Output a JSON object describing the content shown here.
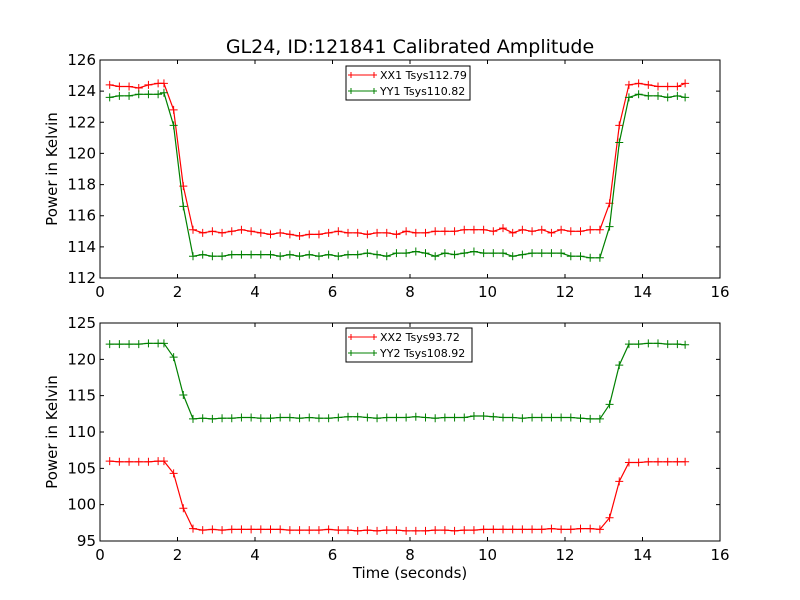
{
  "title": "GL24, ID:121841 Calibrated Amplitude",
  "chart_data": [
    {
      "type": "line",
      "ylabel": "Power in Kelvin",
      "xlabel": "",
      "xlim": [
        0,
        16
      ],
      "ylim": [
        112,
        126
      ],
      "xticks": [
        "0",
        "2",
        "4",
        "6",
        "8",
        "10",
        "12",
        "14",
        "16"
      ],
      "yticks": [
        "112",
        "114",
        "116",
        "118",
        "120",
        "122",
        "124",
        "126"
      ],
      "grid": false,
      "legend_position": "top-center",
      "x": [
        0.25,
        0.5,
        0.75,
        1.0,
        1.25,
        1.5,
        1.65,
        1.9,
        2.15,
        2.4,
        2.65,
        2.9,
        3.15,
        3.4,
        3.65,
        3.9,
        4.15,
        4.4,
        4.65,
        4.9,
        5.15,
        5.4,
        5.65,
        5.9,
        6.15,
        6.4,
        6.65,
        6.9,
        7.15,
        7.4,
        7.65,
        7.9,
        8.15,
        8.4,
        8.65,
        8.9,
        9.15,
        9.4,
        9.65,
        9.9,
        10.15,
        10.4,
        10.65,
        10.9,
        11.15,
        11.4,
        11.65,
        11.9,
        12.15,
        12.4,
        12.65,
        12.9,
        13.15,
        13.4,
        13.65,
        13.9,
        14.15,
        14.4,
        14.65,
        14.9,
        15.1
      ],
      "series": [
        {
          "name": "XX1 Tsys112.79",
          "color": "#ff0000",
          "values": [
            124.4,
            124.3,
            124.3,
            124.2,
            124.4,
            124.5,
            124.5,
            122.8,
            117.9,
            115.1,
            114.9,
            115.0,
            114.9,
            115.0,
            115.1,
            115.0,
            114.9,
            114.8,
            114.9,
            114.8,
            114.7,
            114.8,
            114.8,
            114.9,
            115.0,
            114.9,
            114.9,
            114.8,
            114.9,
            114.9,
            114.8,
            115.0,
            114.9,
            114.9,
            115.0,
            115.0,
            115.0,
            115.1,
            115.1,
            115.1,
            115.0,
            115.2,
            114.9,
            115.1,
            115.0,
            115.1,
            114.9,
            115.1,
            115.0,
            115.0,
            115.1,
            115.1,
            116.8,
            121.8,
            124.4,
            124.5,
            124.4,
            124.3,
            124.3,
            124.3,
            124.5
          ]
        },
        {
          "name": "YY1 Tsys110.82",
          "color": "#008000",
          "values": [
            123.6,
            123.7,
            123.7,
            123.8,
            123.8,
            123.8,
            123.9,
            121.8,
            116.6,
            113.4,
            113.5,
            113.4,
            113.4,
            113.5,
            113.5,
            113.5,
            113.5,
            113.5,
            113.4,
            113.5,
            113.4,
            113.5,
            113.4,
            113.5,
            113.4,
            113.5,
            113.5,
            113.6,
            113.5,
            113.4,
            113.6,
            113.6,
            113.7,
            113.6,
            113.4,
            113.6,
            113.5,
            113.6,
            113.7,
            113.6,
            113.6,
            113.6,
            113.4,
            113.5,
            113.6,
            113.6,
            113.6,
            113.6,
            113.4,
            113.4,
            113.3,
            113.3,
            115.3,
            120.7,
            123.6,
            123.8,
            123.7,
            123.7,
            123.6,
            123.7,
            123.6
          ]
        }
      ]
    },
    {
      "type": "line",
      "ylabel": "Power in Kelvin",
      "xlabel": "Time (seconds)",
      "xlim": [
        0,
        16
      ],
      "ylim": [
        95,
        125
      ],
      "xticks": [
        "0",
        "2",
        "4",
        "6",
        "8",
        "10",
        "12",
        "14",
        "16"
      ],
      "yticks": [
        "95",
        "100",
        "105",
        "110",
        "115",
        "120",
        "125"
      ],
      "grid": false,
      "legend_position": "top-center",
      "x": [
        0.25,
        0.5,
        0.75,
        1.0,
        1.25,
        1.5,
        1.65,
        1.9,
        2.15,
        2.4,
        2.65,
        2.9,
        3.15,
        3.4,
        3.65,
        3.9,
        4.15,
        4.4,
        4.65,
        4.9,
        5.15,
        5.4,
        5.65,
        5.9,
        6.15,
        6.4,
        6.65,
        6.9,
        7.15,
        7.4,
        7.65,
        7.9,
        8.15,
        8.4,
        8.65,
        8.9,
        9.15,
        9.4,
        9.65,
        9.9,
        10.15,
        10.4,
        10.65,
        10.9,
        11.15,
        11.4,
        11.65,
        11.9,
        12.15,
        12.4,
        12.65,
        12.9,
        13.15,
        13.4,
        13.65,
        13.9,
        14.15,
        14.4,
        14.65,
        14.9,
        15.1
      ],
      "series": [
        {
          "name": "XX2 Tsys93.72",
          "color": "#ff0000",
          "values": [
            106.0,
            105.9,
            105.9,
            105.9,
            105.9,
            106.0,
            106.0,
            104.3,
            99.5,
            96.7,
            96.5,
            96.6,
            96.5,
            96.6,
            96.6,
            96.6,
            96.6,
            96.6,
            96.6,
            96.5,
            96.5,
            96.5,
            96.5,
            96.6,
            96.5,
            96.5,
            96.4,
            96.5,
            96.4,
            96.5,
            96.5,
            96.4,
            96.4,
            96.4,
            96.5,
            96.5,
            96.4,
            96.5,
            96.5,
            96.6,
            96.6,
            96.6,
            96.6,
            96.6,
            96.6,
            96.6,
            96.7,
            96.6,
            96.6,
            96.7,
            96.7,
            96.6,
            98.2,
            103.2,
            105.8,
            105.8,
            105.9,
            105.9,
            105.9,
            105.9,
            105.9
          ]
        },
        {
          "name": "YY2 Tsys108.92",
          "color": "#008000",
          "values": [
            122.1,
            122.1,
            122.1,
            122.1,
            122.2,
            122.2,
            122.2,
            120.3,
            115.1,
            111.8,
            111.9,
            111.8,
            111.9,
            111.9,
            112.0,
            112.0,
            111.9,
            111.9,
            112.0,
            112.0,
            111.9,
            112.0,
            111.9,
            111.9,
            112.0,
            112.1,
            112.1,
            112.0,
            111.9,
            112.0,
            112.0,
            112.0,
            112.1,
            112.0,
            111.9,
            112.0,
            112.0,
            112.0,
            112.2,
            112.2,
            112.1,
            112.0,
            112.0,
            111.9,
            112.0,
            112.0,
            112.0,
            112.0,
            112.0,
            111.9,
            111.8,
            111.8,
            113.8,
            119.2,
            122.1,
            122.1,
            122.2,
            122.2,
            122.1,
            122.1,
            122.0
          ]
        }
      ]
    }
  ]
}
